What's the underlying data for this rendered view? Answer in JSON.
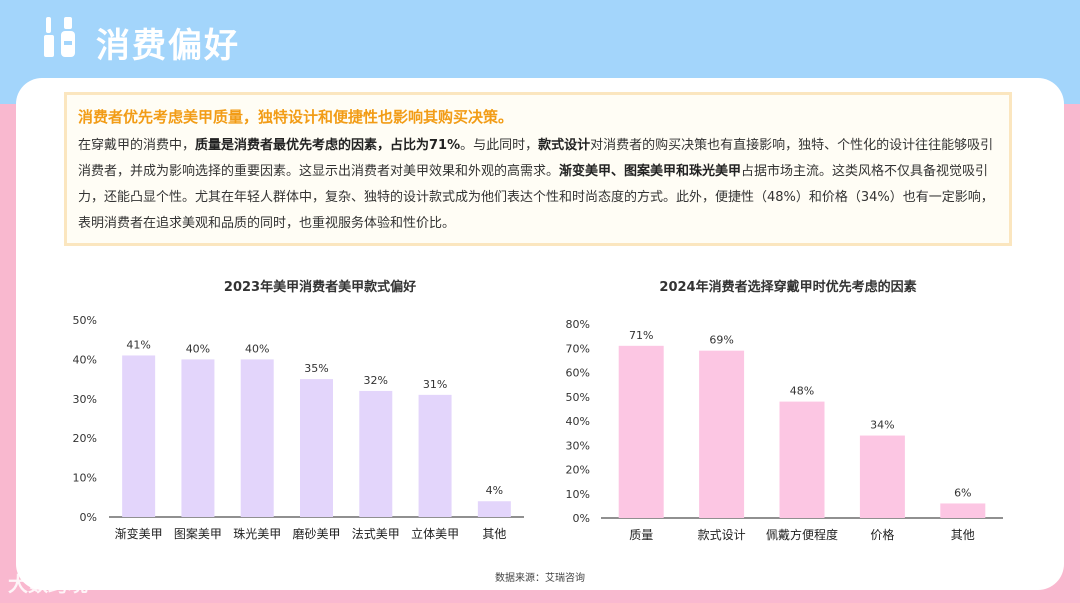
{
  "header": {
    "title": "消费偏好"
  },
  "summary": {
    "headline": "消费者优先考虑美甲质量，独特设计和便捷性也影响其购买决策。",
    "p1": "在穿戴甲的消费中，",
    "b1": "质量是消费者最优先考虑的因素，占比为71%",
    "p2": "。与此同时，",
    "b2": "款式设计",
    "p3": "对消费者的购买决策也有直接影响，独特、个性化的设计往往能够吸引消费者，并成为影响选择的重要因素。这显示出消费者对美甲效果和外观的高需求。",
    "b3": "渐变美甲、图案美甲和珠光美甲",
    "p4": "占据市场主流。这类风格不仅具备视觉吸引力，还能凸显个性。尤其在年轻人群体中，复杂、独特的设计款式成为他们表达个性和时尚态度的方式。此外，便捷性（48%）和价格（34%）也有一定影响，表明消费者在追求美观和品质的同时，也重视服务体验和性价比。"
  },
  "chart_data": [
    {
      "type": "bar",
      "title": "2023年美甲消费者美甲款式偏好",
      "categories": [
        "渐变美甲",
        "图案美甲",
        "珠光美甲",
        "磨砂美甲",
        "法式美甲",
        "立体美甲",
        "其他"
      ],
      "values": [
        41,
        40,
        40,
        35,
        32,
        31,
        4
      ],
      "value_labels": [
        "41%",
        "40%",
        "40%",
        "35%",
        "32%",
        "31%",
        "4%"
      ],
      "yticks": [
        "0%",
        "10%",
        "20%",
        "30%",
        "40%",
        "50%"
      ],
      "ylim": [
        0,
        50
      ],
      "color": "#e3d5fb",
      "grid": false
    },
    {
      "type": "bar",
      "title": "2024年消费者选择穿戴甲时优先考虑的因素",
      "categories": [
        "质量",
        "款式设计",
        "佩戴方便程度",
        "价格",
        "其他"
      ],
      "values": [
        71,
        69,
        48,
        34,
        6
      ],
      "value_labels": [
        "71%",
        "69%",
        "48%",
        "34%",
        "6%"
      ],
      "yticks": [
        "0%",
        "10%",
        "20%",
        "30%",
        "40%",
        "50%",
        "60%",
        "70%",
        "80%"
      ],
      "ylim": [
        0,
        80
      ],
      "color": "#fcc6e3",
      "grid": false
    }
  ],
  "footer": {
    "source": "数据来源：艾瑞咨询",
    "watermark": "大数跨境"
  },
  "colors": {
    "header_bg": "#a3d5fb",
    "page_bg": "#f9b8cf",
    "accent": "#f29c16"
  }
}
